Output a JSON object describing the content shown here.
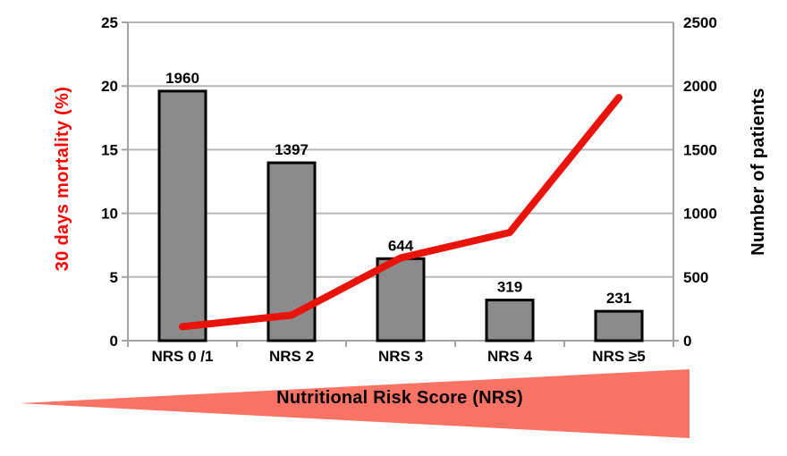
{
  "chart_data": {
    "type": "combo-bar-line",
    "categories": [
      "NRS 0 /1",
      "NRS 2",
      "NRS 3",
      "NRS 4",
      "NRS ≥5"
    ],
    "series": [
      {
        "name": "Number of patients",
        "chart": "bar",
        "axis": "right",
        "values": [
          1960,
          1397,
          644,
          319,
          231
        ]
      },
      {
        "name": "30 days mortality (%)",
        "chart": "line",
        "axis": "left",
        "values": [
          1.1,
          2.0,
          6.5,
          8.5,
          19.1
        ]
      }
    ],
    "bar_value_labels": [
      "1960",
      "1397",
      "644",
      "319",
      "231"
    ],
    "left_axis": {
      "label": "30 days mortality (%)",
      "min": 0,
      "max": 25,
      "ticks": [
        0,
        5,
        10,
        15,
        20,
        25
      ]
    },
    "right_axis": {
      "label": "Number of patients",
      "min": 0,
      "max": 2500,
      "ticks": [
        0,
        500,
        1000,
        1500,
        2000,
        2500
      ]
    },
    "annotation": {
      "label": "Nutritional Risk Score (NRS)",
      "shape": "left-pointing-wedge"
    },
    "grid": true,
    "legend": "none"
  },
  "colors": {
    "background": "#FFFFFF",
    "bar_fill": "#8B8B8B",
    "bar_border": "#000000",
    "line_red": "#E8130A",
    "left_axis_title": "#FE0000",
    "right_axis_title": "#000000",
    "gridline": "#B6B6B6",
    "axis_line": "#A3A3A3",
    "tick_text": "#000000",
    "triangle": "#FB7364"
  }
}
